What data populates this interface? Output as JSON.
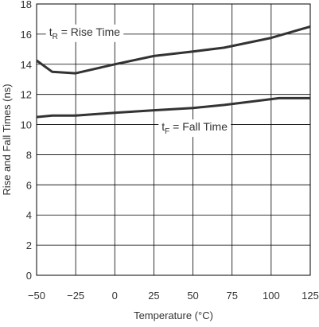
{
  "chart_data": {
    "type": "line",
    "xlabel": "Temperature (°C)",
    "ylabel": "Rise and Fall Times (ns)",
    "xlim": [
      -50,
      125
    ],
    "ylim": [
      0,
      18
    ],
    "x_ticks": [
      "−50",
      "−25",
      "0",
      "25",
      "50",
      "75",
      "100",
      "125"
    ],
    "x_tick_values": [
      -50,
      -25,
      0,
      25,
      50,
      75,
      100,
      125
    ],
    "y_ticks": [
      "0",
      "2",
      "4",
      "6",
      "8",
      "10",
      "12",
      "14",
      "16",
      "18"
    ],
    "y_tick_values": [
      0,
      2,
      4,
      6,
      8,
      10,
      12,
      14,
      16,
      18
    ],
    "grid": true,
    "series": [
      {
        "key": "rise",
        "label_main": "t",
        "label_sub": "R",
        "label_rest": " = Rise Time",
        "points": [
          [
            -50,
            14.25
          ],
          [
            -40,
            13.5
          ],
          [
            -25,
            13.4
          ],
          [
            0,
            14.0
          ],
          [
            25,
            14.55
          ],
          [
            50,
            14.85
          ],
          [
            70,
            15.1
          ],
          [
            100,
            15.75
          ],
          [
            125,
            16.5
          ]
        ]
      },
      {
        "key": "fall",
        "label_main": "t",
        "label_sub": "F",
        "label_rest": " = Fall Time",
        "points": [
          [
            -50,
            10.5
          ],
          [
            -40,
            10.6
          ],
          [
            -25,
            10.6
          ],
          [
            0,
            10.78
          ],
          [
            25,
            10.95
          ],
          [
            50,
            11.1
          ],
          [
            70,
            11.3
          ],
          [
            105,
            11.75
          ],
          [
            125,
            11.75
          ]
        ]
      }
    ]
  }
}
